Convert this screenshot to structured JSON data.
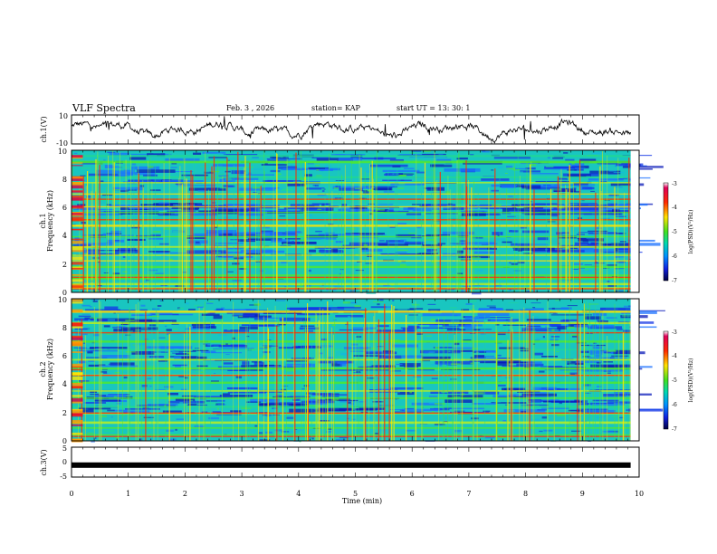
{
  "header": {
    "title": "VLF Spectra",
    "date": "Feb. 3  , 2026",
    "station": "station= KAP",
    "start": "start  UT =   13: 30: 1"
  },
  "chart_data": [
    {
      "type": "line",
      "panel": "ch1-waveform",
      "ylabel": "ch.1(V)",
      "ylim": [
        -10,
        10
      ],
      "yticks": [
        "10",
        "-10"
      ],
      "xlim": [
        0,
        9.85
      ],
      "series_color": "#000000"
    },
    {
      "type": "heatmap",
      "panel": "ch1-spectrogram",
      "ylabel_line1": "ch.1",
      "ylabel_line2": "Frequency  (kHz)",
      "ylim": [
        0,
        10
      ],
      "yticks": [
        "0",
        "2",
        "4",
        "6",
        "8",
        "10"
      ],
      "xlim": [
        0,
        9.85
      ],
      "colorbar": {
        "label": "log(PSD)(V²/Hz)",
        "range": [
          -7,
          -3
        ],
        "ticks": [
          "-3",
          "-4",
          "-5",
          "-6",
          "-7"
        ]
      },
      "bands_khz": [
        0.3,
        0.6,
        1.0,
        1.2,
        1.8,
        2.2,
        2.6,
        3.2,
        3.9,
        4.7,
        5.1,
        5.6,
        6.0,
        6.5,
        6.9,
        7.7,
        8.1,
        9.2,
        9.6
      ],
      "red_bands_khz": [
        0.25,
        1.05,
        5.1,
        6.55
      ],
      "quiet_khz": [
        [
          7.3,
          9.9
        ],
        [
          5.6,
          6.3
        ],
        [
          2.6,
          4.4
        ]
      ]
    },
    {
      "type": "heatmap",
      "panel": "ch2-spectrogram",
      "ylabel_line1": "ch.2",
      "ylabel_line2": "Frequency  (kHz)",
      "ylim": [
        0,
        10
      ],
      "yticks": [
        "0",
        "2",
        "4",
        "6",
        "8",
        "10"
      ],
      "xlim": [
        0,
        9.85
      ],
      "colorbar": {
        "label": "log(PSD)(V²/Hz)",
        "range": [
          -7,
          -3
        ],
        "ticks": [
          "-3",
          "-4",
          "-5",
          "-6",
          "-7"
        ]
      },
      "bands_khz": [
        0.4,
        0.9,
        1.3,
        1.9,
        2.4,
        3.0,
        3.5,
        4.1,
        4.6,
        5.1,
        5.7,
        6.4,
        7.0,
        7.6,
        8.3,
        9.1
      ],
      "red_bands_khz": [
        0.3,
        1.95,
        4.6,
        7.6
      ],
      "quiet_khz": [
        [
          7.8,
          9.5
        ],
        [
          5.0,
          6.8
        ],
        [
          2.0,
          3.8
        ]
      ]
    },
    {
      "type": "line",
      "panel": "ch3-waveform",
      "ylabel": "ch.3(V)",
      "ylim": [
        -5,
        5
      ],
      "yticks": [
        "5",
        "0",
        "-5"
      ],
      "xlim": [
        0,
        9.85
      ],
      "level_volts": -1.0,
      "series_color": "#000000"
    }
  ],
  "xaxis": {
    "label": "Time  (min)",
    "range": [
      0,
      10
    ],
    "ticks": [
      "0",
      "1",
      "2",
      "3",
      "4",
      "5",
      "6",
      "7",
      "8",
      "9",
      "10"
    ]
  }
}
